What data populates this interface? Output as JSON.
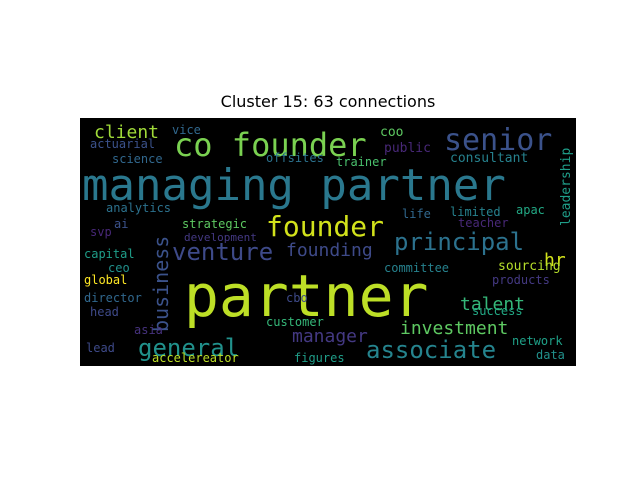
{
  "title": "Cluster 15: 63 connections",
  "background": "#000000",
  "words": [
    {
      "text": "partner",
      "color": "#bddf26"
    },
    {
      "text": "managing partner",
      "color": "#2a788e"
    },
    {
      "text": "co founder",
      "color": "#7ad151"
    },
    {
      "text": "senior",
      "color": "#3b528b"
    },
    {
      "text": "founder",
      "color": "#d2e21b"
    },
    {
      "text": "principal",
      "color": "#2c728e"
    },
    {
      "text": "venture",
      "color": "#3e4a89"
    },
    {
      "text": "associate",
      "color": "#25848e"
    },
    {
      "text": "general",
      "color": "#21918c"
    },
    {
      "text": "business",
      "color": "#3b528b"
    },
    {
      "text": "investment",
      "color": "#5ec962"
    },
    {
      "text": "talent",
      "color": "#35b779"
    },
    {
      "text": "manager",
      "color": "#443983"
    },
    {
      "text": "founding",
      "color": "#3e4a89"
    },
    {
      "text": "client",
      "color": "#a0da39"
    },
    {
      "text": "hr",
      "color": "#d2e21b"
    },
    {
      "text": "leadership",
      "color": "#1f9e89"
    },
    {
      "text": "consultant",
      "color": "#26828e"
    },
    {
      "text": "coo",
      "color": "#5ec962"
    },
    {
      "text": "public",
      "color": "#482878"
    },
    {
      "text": "vice",
      "color": "#31688e"
    },
    {
      "text": "actuarial",
      "color": "#3b528b"
    },
    {
      "text": "science",
      "color": "#31688e"
    },
    {
      "text": "offsites",
      "color": "#2c728e"
    },
    {
      "text": "trainer",
      "color": "#4ac16d"
    },
    {
      "text": "analytics",
      "color": "#2c728e"
    },
    {
      "text": "strategic",
      "color": "#5ec962"
    },
    {
      "text": "life",
      "color": "#31688e"
    },
    {
      "text": "limited",
      "color": "#26828e"
    },
    {
      "text": "apac",
      "color": "#22a884"
    },
    {
      "text": "teacher",
      "color": "#482878"
    },
    {
      "text": "ai",
      "color": "#3b528b"
    },
    {
      "text": "svp",
      "color": "#482878"
    },
    {
      "text": "development",
      "color": "#443983"
    },
    {
      "text": "capital",
      "color": "#1f9e89"
    },
    {
      "text": "ceo",
      "color": "#21918c"
    },
    {
      "text": "global",
      "color": "#fde725"
    },
    {
      "text": "committee",
      "color": "#26828e"
    },
    {
      "text": "sourcing",
      "color": "#b5de2b"
    },
    {
      "text": "products",
      "color": "#443983"
    },
    {
      "text": "director",
      "color": "#31688e"
    },
    {
      "text": "head",
      "color": "#3e4a89"
    },
    {
      "text": "cbo",
      "color": "#3e4a89"
    },
    {
      "text": "success",
      "color": "#22a884"
    },
    {
      "text": "asia",
      "color": "#46327e"
    },
    {
      "text": "customer",
      "color": "#35b779"
    },
    {
      "text": "network",
      "color": "#1fa188"
    },
    {
      "text": "lead",
      "color": "#3e4a89"
    },
    {
      "text": "figures",
      "color": "#1f9e89"
    },
    {
      "text": "accelereator",
      "color": "#bddf26"
    },
    {
      "text": "data",
      "color": "#21918c"
    }
  ]
}
